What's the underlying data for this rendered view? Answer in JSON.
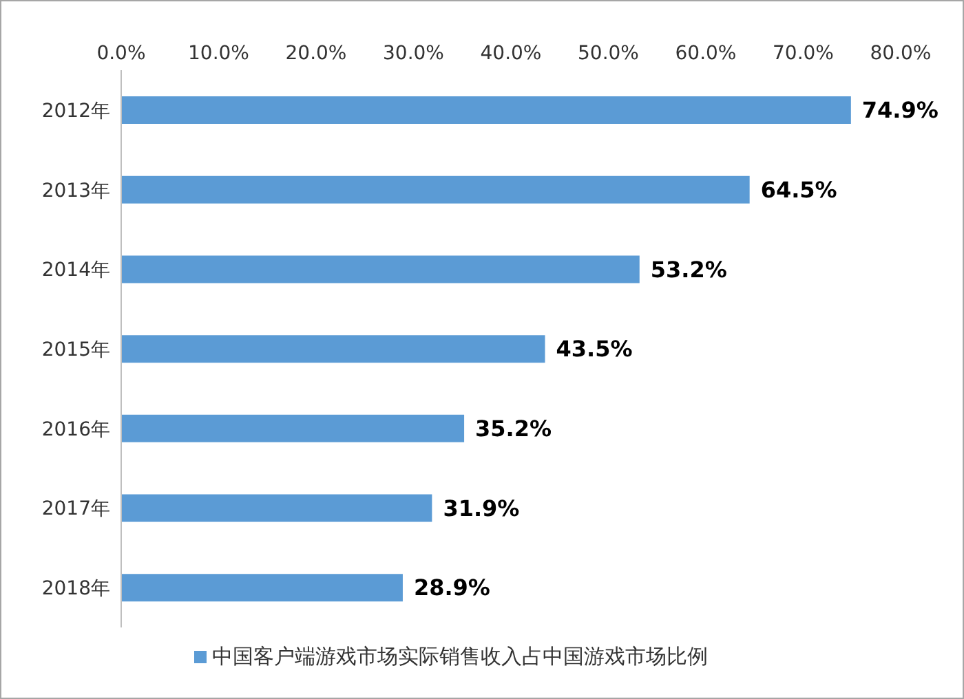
{
  "chart_data": {
    "type": "bar",
    "orientation": "horizontal",
    "categories": [
      "2012年",
      "2013年",
      "2014年",
      "2015年",
      "2016年",
      "2017年",
      "2018年"
    ],
    "series": [
      {
        "name": "中国客户端游戏市场实际销售收入占中国游戏市场比例",
        "color": "#5b9bd5",
        "values": [
          74.9,
          64.5,
          53.2,
          43.5,
          35.2,
          31.9,
          28.9
        ],
        "value_labels": [
          "74.9%",
          "64.5%",
          "53.2%",
          "43.5%",
          "35.2%",
          "31.9%",
          "28.9%"
        ]
      }
    ],
    "xlim": [
      0,
      80
    ],
    "xticks": [
      {
        "value": 0,
        "label": "0.0%"
      },
      {
        "value": 10,
        "label": "10.0%"
      },
      {
        "value": 20,
        "label": "20.0%"
      },
      {
        "value": 30,
        "label": "30.0%"
      },
      {
        "value": 40,
        "label": "40.0%"
      },
      {
        "value": 50,
        "label": "50.0%"
      },
      {
        "value": 60,
        "label": "60.0%"
      },
      {
        "value": 70,
        "label": "70.0%"
      },
      {
        "value": 80,
        "label": "80.0%"
      }
    ],
    "legend": "bottom",
    "grid": false
  }
}
